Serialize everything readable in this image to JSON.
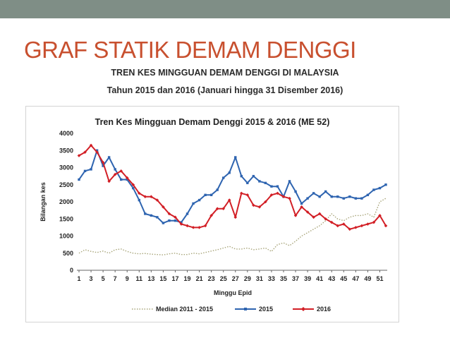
{
  "slide": {
    "title": "GRAF STATIK DEMAM DENGGI",
    "heading": "TREN KES MINGGUAN DEMAM DENGGI DI MALAYSIA",
    "subheading": "Tahun 2015 dan 2016 (Januari hingga 31 Disember 2016)"
  },
  "colors": {
    "top_bar": "#7f8e86",
    "title": "#c8502f",
    "median": "#a8a57a",
    "y2015": "#2e64b0",
    "y2016": "#d21f26"
  },
  "chart_data": {
    "type": "line",
    "title": "Tren Kes Mingguan Demam Denggi 2015 & 2016 (ME 52)",
    "xlabel": "Minggu Epid",
    "ylabel": "Bilangan kes",
    "ylim": [
      0,
      4000
    ],
    "yticks": [
      0,
      500,
      1000,
      1500,
      2000,
      2500,
      3000,
      3500,
      4000
    ],
    "xtick_labels": [
      "1",
      "3",
      "5",
      "7",
      "9",
      "11",
      "13",
      "15",
      "17",
      "19",
      "21",
      "23",
      "25",
      "27",
      "29",
      "31",
      "33",
      "35",
      "37",
      "39",
      "41",
      "43",
      "45",
      "47",
      "49",
      "51"
    ],
    "grid": false,
    "legend_position": "bottom",
    "x": [
      1,
      2,
      3,
      4,
      5,
      6,
      7,
      8,
      9,
      10,
      11,
      12,
      13,
      14,
      15,
      16,
      17,
      18,
      19,
      20,
      21,
      22,
      23,
      24,
      25,
      26,
      27,
      28,
      29,
      30,
      31,
      32,
      33,
      34,
      35,
      36,
      37,
      38,
      39,
      40,
      41,
      42,
      43,
      44,
      45,
      46,
      47,
      48,
      49,
      50,
      51,
      52
    ],
    "series": [
      {
        "name": "Median 2011 - 2015",
        "style": "dotted",
        "values": [
          500,
          600,
          550,
          520,
          560,
          500,
          600,
          620,
          550,
          500,
          480,
          490,
          470,
          460,
          450,
          480,
          500,
          460,
          460,
          500,
          480,
          520,
          560,
          600,
          650,
          700,
          620,
          620,
          650,
          600,
          620,
          650,
          550,
          750,
          800,
          720,
          850,
          1000,
          1100,
          1200,
          1300,
          1450,
          1650,
          1500,
          1450,
          1550,
          1600,
          1600,
          1650,
          1550,
          2000,
          2100
        ]
      },
      {
        "name": "2015",
        "style": "solid-square",
        "values": [
          2650,
          2900,
          2950,
          3500,
          3050,
          3300,
          2950,
          2650,
          2650,
          2400,
          2050,
          1650,
          1600,
          1550,
          1380,
          1450,
          1450,
          1400,
          1650,
          1950,
          2050,
          2200,
          2200,
          2350,
          2700,
          2850,
          3300,
          2750,
          2550,
          2750,
          2600,
          2550,
          2450,
          2450,
          2150,
          2600,
          2300,
          1950,
          2100,
          2250,
          2150,
          2300,
          2150,
          2150,
          2100,
          2150,
          2100,
          2100,
          2200,
          2350,
          2400,
          2500
        ]
      },
      {
        "name": "2016",
        "style": "solid-diamond",
        "values": [
          3350,
          3450,
          3650,
          3450,
          3150,
          2600,
          2800,
          2900,
          2700,
          2500,
          2250,
          2150,
          2150,
          2050,
          1850,
          1650,
          1550,
          1350,
          1300,
          1250,
          1250,
          1300,
          1600,
          1800,
          1800,
          2050,
          1550,
          2250,
          2200,
          1900,
          1850,
          2000,
          2200,
          2250,
          2150,
          2100,
          1600,
          1850,
          1700,
          1550,
          1650,
          1500,
          1400,
          1300,
          1350,
          1200,
          1250,
          1300,
          1350,
          1400,
          1600,
          1300
        ]
      }
    ]
  }
}
